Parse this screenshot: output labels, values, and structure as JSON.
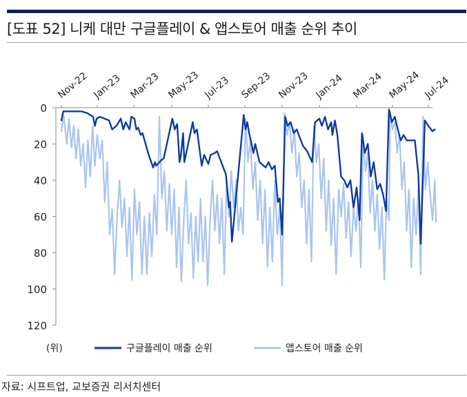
{
  "header": {
    "title": "[도표 52] 니케 대만 구글플레이 & 앱스토어 매출 순위 추이"
  },
  "footer": {
    "source": "자료: 시프트업, 교보증권 리서치센터"
  },
  "chart_data": {
    "type": "line",
    "title": "[도표 52] 니케 대만 구글플레이 & 앱스토어 매출 순위 추이",
    "x_tick_labels": [
      "Nov-22",
      "Jan-23",
      "Mar-23",
      "May-23",
      "Jul-23",
      "Sep-23",
      "Nov-23",
      "Jan-24",
      "Mar-24",
      "May-24",
      "Jul-24"
    ],
    "y_ticks": [
      0,
      20,
      40,
      60,
      80,
      100,
      120
    ],
    "ylim": [
      0,
      120
    ],
    "y_inverted": true,
    "y_unit_label": "(위)",
    "legend_position": "bottom",
    "grid": false,
    "colors": {
      "google": "#0d3a9e",
      "appstore": "#a9c4f0"
    },
    "series": [
      {
        "name": "구글플레이 매출 순위",
        "points": [
          [
            "2022-11-01",
            7
          ],
          [
            "2022-11-04",
            2
          ],
          [
            "2022-11-20",
            2
          ],
          [
            "2022-12-05",
            2
          ],
          [
            "2022-12-15",
            3
          ],
          [
            "2022-12-25",
            5
          ],
          [
            "2022-12-28",
            10
          ],
          [
            "2022-12-31",
            6
          ],
          [
            "2023-01-05",
            5
          ],
          [
            "2023-01-20",
            7
          ],
          [
            "2023-01-25",
            12
          ],
          [
            "2023-02-01",
            10
          ],
          [
            "2023-02-08",
            6
          ],
          [
            "2023-02-12",
            12
          ],
          [
            "2023-02-16",
            8
          ],
          [
            "2023-02-22",
            12
          ],
          [
            "2023-02-25",
            5
          ],
          [
            "2023-03-02",
            6
          ],
          [
            "2023-03-05",
            12
          ],
          [
            "2023-03-08",
            11
          ],
          [
            "2023-03-12",
            15
          ],
          [
            "2023-03-15",
            14
          ],
          [
            "2023-03-25",
            26
          ],
          [
            "2023-04-01",
            33
          ],
          [
            "2023-04-04",
            30
          ],
          [
            "2023-04-06",
            32
          ],
          [
            "2023-04-14",
            29
          ],
          [
            "2023-04-18",
            28
          ],
          [
            "2023-05-02",
            6
          ],
          [
            "2023-05-06",
            12
          ],
          [
            "2023-05-10",
            9
          ],
          [
            "2023-05-14",
            30
          ],
          [
            "2023-05-16",
            27
          ],
          [
            "2023-05-20",
            14
          ],
          [
            "2023-05-22",
            30
          ],
          [
            "2023-06-05",
            8
          ],
          [
            "2023-06-08",
            14
          ],
          [
            "2023-06-12",
            12
          ],
          [
            "2023-06-20",
            32
          ],
          [
            "2023-06-24",
            26
          ],
          [
            "2023-07-01",
            31
          ],
          [
            "2023-07-05",
            26
          ],
          [
            "2023-07-12",
            25
          ],
          [
            "2023-07-16",
            24
          ],
          [
            "2023-07-31",
            37
          ],
          [
            "2023-08-05",
            55
          ],
          [
            "2023-08-07",
            52
          ],
          [
            "2023-08-10",
            74
          ],
          [
            "2023-08-30",
            4
          ],
          [
            "2023-09-02",
            12
          ],
          [
            "2023-09-05",
            8
          ],
          [
            "2023-09-08",
            14
          ],
          [
            "2023-09-12",
            20
          ],
          [
            "2023-09-15",
            25
          ],
          [
            "2023-09-18",
            20
          ],
          [
            "2023-09-25",
            30
          ],
          [
            "2023-10-05",
            33
          ],
          [
            "2023-10-10",
            30
          ],
          [
            "2023-10-15",
            34
          ],
          [
            "2023-10-20",
            32
          ],
          [
            "2023-10-25",
            52
          ],
          [
            "2023-10-28",
            50
          ],
          [
            "2023-11-01",
            70
          ],
          [
            "2023-11-06",
            5
          ],
          [
            "2023-11-10",
            10
          ],
          [
            "2023-11-15",
            8
          ],
          [
            "2023-11-20",
            14
          ],
          [
            "2023-11-25",
            12
          ],
          [
            "2023-12-05",
            21
          ],
          [
            "2023-12-12",
            24
          ],
          [
            "2023-12-20",
            30
          ],
          [
            "2023-12-25",
            8
          ],
          [
            "2024-01-01",
            6
          ],
          [
            "2024-01-05",
            10
          ],
          [
            "2024-01-10",
            5
          ],
          [
            "2024-01-15",
            12
          ],
          [
            "2024-01-20",
            8
          ],
          [
            "2024-01-22",
            15
          ],
          [
            "2024-01-26",
            7
          ],
          [
            "2024-01-30",
            15
          ],
          [
            "2024-02-05",
            38
          ],
          [
            "2024-02-10",
            40
          ],
          [
            "2024-02-15",
            44
          ],
          [
            "2024-02-20",
            40
          ],
          [
            "2024-02-25",
            55
          ],
          [
            "2024-03-01",
            44
          ],
          [
            "2024-03-06",
            62
          ],
          [
            "2024-03-10",
            14
          ],
          [
            "2024-03-15",
            25
          ],
          [
            "2024-03-20",
            20
          ],
          [
            "2024-03-25",
            38
          ],
          [
            "2024-03-30",
            30
          ],
          [
            "2024-04-05",
            45
          ],
          [
            "2024-04-10",
            42
          ],
          [
            "2024-04-15",
            48
          ],
          [
            "2024-04-20",
            57
          ],
          [
            "2024-04-25",
            1
          ],
          [
            "2024-04-30",
            8
          ],
          [
            "2024-05-05",
            5
          ],
          [
            "2024-05-10",
            12
          ],
          [
            "2024-05-15",
            18
          ],
          [
            "2024-05-20",
            15
          ],
          [
            "2024-05-25",
            18
          ],
          [
            "2024-06-01",
            18
          ],
          [
            "2024-06-08",
            18
          ],
          [
            "2024-06-14",
            37
          ],
          [
            "2024-06-18",
            75
          ],
          [
            "2024-06-25",
            7
          ],
          [
            "2024-07-01",
            10
          ],
          [
            "2024-07-08",
            13
          ],
          [
            "2024-07-12",
            12
          ]
        ]
      },
      {
        "name": "앱스토어 매출 순위",
        "points": [
          [
            "2022-11-01",
            13
          ],
          [
            "2022-11-05",
            4
          ],
          [
            "2022-11-10",
            20
          ],
          [
            "2022-11-14",
            6
          ],
          [
            "2022-11-18",
            22
          ],
          [
            "2022-11-22",
            10
          ],
          [
            "2022-11-26",
            28
          ],
          [
            "2022-11-30",
            12
          ],
          [
            "2022-12-04",
            32
          ],
          [
            "2022-12-08",
            20
          ],
          [
            "2022-12-12",
            44
          ],
          [
            "2022-12-16",
            18
          ],
          [
            "2022-12-20",
            38
          ],
          [
            "2022-12-24",
            10
          ],
          [
            "2022-12-28",
            32
          ],
          [
            "2023-01-01",
            15
          ],
          [
            "2023-01-05",
            28
          ],
          [
            "2023-01-09",
            18
          ],
          [
            "2023-01-13",
            52
          ],
          [
            "2023-01-17",
            30
          ],
          [
            "2023-01-21",
            70
          ],
          [
            "2023-01-25",
            56
          ],
          [
            "2023-01-29",
            92
          ],
          [
            "2023-02-02",
            60
          ],
          [
            "2023-02-06",
            40
          ],
          [
            "2023-02-10",
            66
          ],
          [
            "2023-02-14",
            50
          ],
          [
            "2023-02-18",
            82
          ],
          [
            "2023-02-22",
            55
          ],
          [
            "2023-02-26",
            95
          ],
          [
            "2023-03-02",
            45
          ],
          [
            "2023-03-06",
            70
          ],
          [
            "2023-03-10",
            52
          ],
          [
            "2023-03-14",
            92
          ],
          [
            "2023-03-18",
            60
          ],
          [
            "2023-03-22",
            92
          ],
          [
            "2023-03-26",
            58
          ],
          [
            "2023-03-30",
            82
          ],
          [
            "2023-04-03",
            48
          ],
          [
            "2023-04-07",
            70
          ],
          [
            "2023-04-11",
            5
          ],
          [
            "2023-04-15",
            50
          ],
          [
            "2023-04-19",
            35
          ],
          [
            "2023-04-23",
            68
          ],
          [
            "2023-04-27",
            42
          ],
          [
            "2023-05-01",
            70
          ],
          [
            "2023-05-05",
            45
          ],
          [
            "2023-05-09",
            88
          ],
          [
            "2023-05-13",
            55
          ],
          [
            "2023-05-17",
            96
          ],
          [
            "2023-05-21",
            62
          ],
          [
            "2023-05-25",
            40
          ],
          [
            "2023-05-29",
            75
          ],
          [
            "2023-06-02",
            58
          ],
          [
            "2023-06-06",
            94
          ],
          [
            "2023-06-10",
            60
          ],
          [
            "2023-06-14",
            85
          ],
          [
            "2023-06-18",
            50
          ],
          [
            "2023-06-22",
            85
          ],
          [
            "2023-06-26",
            60
          ],
          [
            "2023-06-30",
            98
          ],
          [
            "2023-07-04",
            62
          ],
          [
            "2023-07-08",
            40
          ],
          [
            "2023-07-12",
            68
          ],
          [
            "2023-07-16",
            48
          ],
          [
            "2023-07-20",
            75
          ],
          [
            "2023-07-24",
            50
          ],
          [
            "2023-07-28",
            92
          ],
          [
            "2023-08-01",
            40
          ],
          [
            "2023-08-05",
            60
          ],
          [
            "2023-08-09",
            35
          ],
          [
            "2023-08-13",
            55
          ],
          [
            "2023-08-17",
            40
          ],
          [
            "2023-08-21",
            68
          ],
          [
            "2023-08-25",
            55
          ],
          [
            "2023-08-29",
            70
          ],
          [
            "2023-09-02",
            6
          ],
          [
            "2023-09-06",
            30
          ],
          [
            "2023-09-10",
            18
          ],
          [
            "2023-09-14",
            45
          ],
          [
            "2023-09-18",
            30
          ],
          [
            "2023-09-22",
            62
          ],
          [
            "2023-09-26",
            40
          ],
          [
            "2023-09-30",
            75
          ],
          [
            "2023-10-04",
            45
          ],
          [
            "2023-10-08",
            88
          ],
          [
            "2023-10-12",
            55
          ],
          [
            "2023-10-16",
            85
          ],
          [
            "2023-10-20",
            40
          ],
          [
            "2023-10-24",
            70
          ],
          [
            "2023-10-28",
            55
          ],
          [
            "2023-11-01",
            98
          ],
          [
            "2023-11-05",
            3
          ],
          [
            "2023-11-09",
            15
          ],
          [
            "2023-11-13",
            8
          ],
          [
            "2023-11-17",
            25
          ],
          [
            "2023-11-21",
            12
          ],
          [
            "2023-11-25",
            38
          ],
          [
            "2023-11-29",
            25
          ],
          [
            "2023-12-03",
            55
          ],
          [
            "2023-12-07",
            40
          ],
          [
            "2023-12-11",
            75
          ],
          [
            "2023-12-15",
            45
          ],
          [
            "2023-12-19",
            85
          ],
          [
            "2023-12-23",
            10
          ],
          [
            "2023-12-27",
            30
          ],
          [
            "2023-12-31",
            20
          ],
          [
            "2024-01-04",
            50
          ],
          [
            "2024-01-08",
            28
          ],
          [
            "2024-01-12",
            68
          ],
          [
            "2024-01-16",
            40
          ],
          [
            "2024-01-20",
            76
          ],
          [
            "2024-01-24",
            50
          ],
          [
            "2024-01-28",
            92
          ],
          [
            "2024-02-01",
            45
          ],
          [
            "2024-02-05",
            60
          ],
          [
            "2024-02-09",
            42
          ],
          [
            "2024-02-13",
            72
          ],
          [
            "2024-02-17",
            52
          ],
          [
            "2024-02-21",
            82
          ],
          [
            "2024-02-25",
            55
          ],
          [
            "2024-02-29",
            68
          ],
          [
            "2024-03-04",
            50
          ],
          [
            "2024-03-08",
            88
          ],
          [
            "2024-03-12",
            15
          ],
          [
            "2024-03-16",
            35
          ],
          [
            "2024-03-20",
            25
          ],
          [
            "2024-03-24",
            58
          ],
          [
            "2024-03-28",
            40
          ],
          [
            "2024-04-01",
            68
          ],
          [
            "2024-04-05",
            48
          ],
          [
            "2024-04-09",
            78
          ],
          [
            "2024-04-13",
            55
          ],
          [
            "2024-04-17",
            95
          ],
          [
            "2024-04-21",
            50
          ],
          [
            "2024-04-25",
            62
          ],
          [
            "2024-04-27",
            2
          ],
          [
            "2024-05-01",
            12
          ],
          [
            "2024-05-05",
            8
          ],
          [
            "2024-05-09",
            25
          ],
          [
            "2024-05-13",
            15
          ],
          [
            "2024-05-17",
            45
          ],
          [
            "2024-05-21",
            30
          ],
          [
            "2024-05-25",
            68
          ],
          [
            "2024-05-29",
            45
          ],
          [
            "2024-06-02",
            88
          ],
          [
            "2024-06-06",
            50
          ],
          [
            "2024-06-10",
            70
          ],
          [
            "2024-06-14",
            45
          ],
          [
            "2024-06-18",
            92
          ],
          [
            "2024-06-22",
            5
          ],
          [
            "2024-06-26",
            45
          ],
          [
            "2024-06-30",
            30
          ],
          [
            "2024-07-04",
            48
          ],
          [
            "2024-07-08",
            62
          ],
          [
            "2024-07-12",
            40
          ],
          [
            "2024-07-14",
            63
          ]
        ]
      }
    ]
  }
}
